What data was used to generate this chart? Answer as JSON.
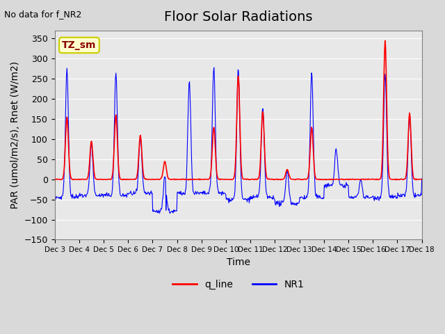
{
  "title": "Floor Solar Radiations",
  "top_left_text": "No data for f_NR2",
  "legend_box_text": "TZ_sm",
  "xlabel": "Time",
  "ylabel": "PAR (umol/m2/s), Rnet (W/m2)",
  "ylim": [
    -150,
    370
  ],
  "yticks": [
    -150,
    -100,
    -50,
    0,
    50,
    100,
    150,
    200,
    250,
    300,
    350
  ],
  "x_tick_labels": [
    "Dec 3",
    "Dec 4",
    "Dec 5",
    "Dec 6",
    "Dec 7",
    "Dec 8",
    "Dec 9",
    "Dec 10",
    "Dec 11",
    "Dec 12",
    "Dec 13",
    "Dec 14",
    "Dec 15",
    "Dec 16",
    "Dec 17",
    "Dec 18"
  ],
  "q_line_color": "#ff0000",
  "NR1_color": "#0000ff",
  "background_color": "#d9d9d9",
  "plot_bg_color": "#e8e8e8",
  "legend_box_facecolor": "#ffffcc",
  "legend_box_edgecolor": "#cccc00",
  "title_fontsize": 14,
  "label_fontsize": 10
}
